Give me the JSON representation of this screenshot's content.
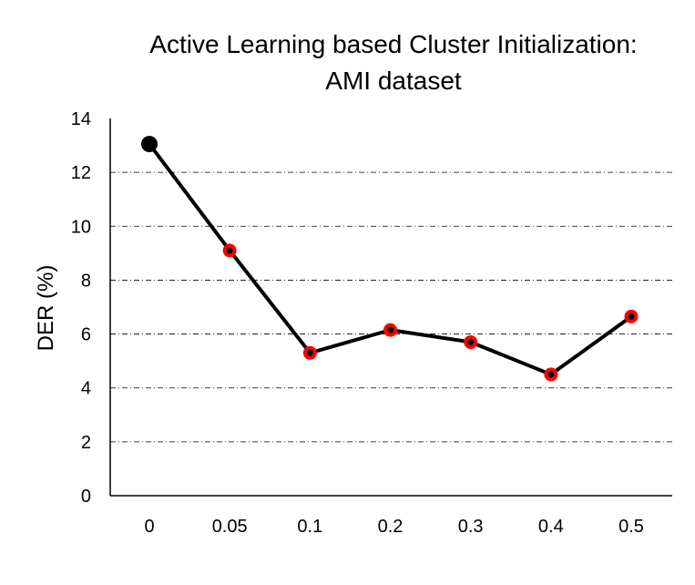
{
  "chart_data": {
    "type": "line",
    "title": "Active Learning based Cluster Initialization:",
    "subtitle": "AMI dataset",
    "xlabel": "",
    "ylabel": "DER (%)",
    "categories": [
      "0",
      "0.05",
      "0.1",
      "0.2",
      "0.3",
      "0.4",
      "0.5"
    ],
    "values": [
      13.05,
      9.1,
      5.3,
      6.15,
      5.7,
      4.5,
      6.65
    ],
    "ylim": [
      0,
      14
    ],
    "yticks": [
      "0",
      "2",
      "4",
      "6",
      "8",
      "10",
      "12",
      "14"
    ],
    "grid": "horizontal dash-dot",
    "legend": "none",
    "line_color": "#000000",
    "first_marker_color": "#000000",
    "marker_ring_color": "#ff0000",
    "marker_center_color": "#000000"
  }
}
